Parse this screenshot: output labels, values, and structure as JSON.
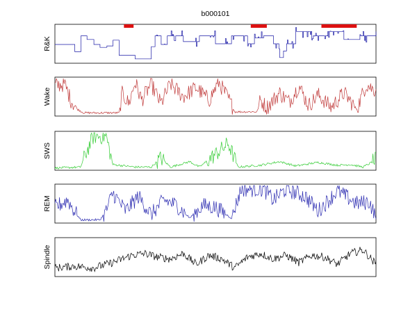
{
  "chart_data": {
    "type": "line",
    "title": "b000101",
    "grid": false,
    "legend": "none",
    "colors": {
      "R&K": "#1a1aa6",
      "Wake": "#c03a3a",
      "SWS": "#33cc33",
      "REM": "#2a2ab0",
      "Spindle": "#000000",
      "marker": "#dd1111",
      "panel_bg": "#ffffff",
      "frame": "#000000"
    },
    "panels": [
      {
        "name": "R&K",
        "ylabel": "R&K",
        "color": "#1a1aa6",
        "style": "step",
        "points": [
          [
            0,
            0.48
          ],
          [
            4,
            0.48
          ],
          [
            6,
            0.28
          ],
          [
            8,
            0.72
          ],
          [
            10,
            0.62
          ],
          [
            12,
            0.48
          ],
          [
            14,
            0.4
          ],
          [
            16,
            0.44
          ],
          [
            18,
            0.6
          ],
          [
            20,
            0.18
          ],
          [
            24,
            0.18
          ],
          [
            25,
            0.08
          ],
          [
            29,
            0.08
          ],
          [
            30,
            0.42
          ],
          [
            31,
            0.72
          ],
          [
            33,
            0.48
          ],
          [
            35,
            0.72
          ],
          [
            40,
            0.56
          ],
          [
            45,
            0.72
          ],
          [
            50,
            0.5
          ],
          [
            55,
            0.72
          ],
          [
            60,
            0.5
          ],
          [
            62,
            0.66
          ],
          [
            65,
            0.72
          ],
          [
            68,
            0.5
          ],
          [
            70,
            0.12
          ],
          [
            71,
            0.3
          ],
          [
            72,
            0.5
          ],
          [
            75,
            0.84
          ],
          [
            80,
            0.72
          ],
          [
            85,
            0.84
          ],
          [
            90,
            0.62
          ],
          [
            95,
            0.72
          ],
          [
            100,
            0.84
          ]
        ],
        "markers": [
          [
            21.5,
            24.5
          ],
          [
            61,
            66
          ],
          [
            83,
            94
          ]
        ]
      },
      {
        "name": "Wake",
        "ylabel": "Wake",
        "color": "#c03a3a",
        "style": "line",
        "points": [
          [
            0,
            0.8
          ],
          [
            3,
            0.85
          ],
          [
            5,
            0.4
          ],
          [
            7,
            0.15
          ],
          [
            9,
            0.05
          ],
          [
            20,
            0.05
          ],
          [
            21,
            0.6
          ],
          [
            23,
            0.3
          ],
          [
            25,
            0.9
          ],
          [
            27,
            0.4
          ],
          [
            30,
            0.85
          ],
          [
            33,
            0.3
          ],
          [
            36,
            0.85
          ],
          [
            40,
            0.5
          ],
          [
            44,
            0.75
          ],
          [
            48,
            0.4
          ],
          [
            51,
            0.9
          ],
          [
            54,
            0.45
          ],
          [
            56,
            0.08
          ],
          [
            63,
            0.08
          ],
          [
            64,
            0.4
          ],
          [
            66,
            0.2
          ],
          [
            70,
            0.6
          ],
          [
            73,
            0.35
          ],
          [
            76,
            0.8
          ],
          [
            79,
            0.25
          ],
          [
            82,
            0.55
          ],
          [
            86,
            0.2
          ],
          [
            90,
            0.6
          ],
          [
            94,
            0.15
          ],
          [
            97,
            0.85
          ],
          [
            99,
            0.7
          ]
        ]
      },
      {
        "name": "SWS",
        "ylabel": "SWS",
        "color": "#33cc33",
        "style": "line",
        "points": [
          [
            0,
            0.02
          ],
          [
            8,
            0.05
          ],
          [
            10,
            0.5
          ],
          [
            12,
            0.9
          ],
          [
            16,
            0.9
          ],
          [
            18,
            0.12
          ],
          [
            25,
            0.05
          ],
          [
            30,
            0.05
          ],
          [
            33,
            0.3
          ],
          [
            36,
            0.05
          ],
          [
            42,
            0.2
          ],
          [
            45,
            0.05
          ],
          [
            50,
            0.4
          ],
          [
            54,
            0.7
          ],
          [
            57,
            0.05
          ],
          [
            64,
            0.1
          ],
          [
            70,
            0.2
          ],
          [
            75,
            0.08
          ],
          [
            82,
            0.18
          ],
          [
            88,
            0.1
          ],
          [
            92,
            0.12
          ],
          [
            96,
            0.05
          ],
          [
            100,
            0.25
          ]
        ]
      },
      {
        "name": "REM",
        "ylabel": "REM",
        "color": "#2a2ab0",
        "style": "line",
        "points": [
          [
            0,
            0.4
          ],
          [
            4,
            0.6
          ],
          [
            6,
            0.3
          ],
          [
            8,
            0.05
          ],
          [
            14,
            0.05
          ],
          [
            16,
            0.3
          ],
          [
            18,
            0.8
          ],
          [
            22,
            0.3
          ],
          [
            26,
            0.7
          ],
          [
            30,
            0.2
          ],
          [
            34,
            0.6
          ],
          [
            38,
            0.45
          ],
          [
            42,
            0.1
          ],
          [
            46,
            0.45
          ],
          [
            50,
            0.4
          ],
          [
            55,
            0.1
          ],
          [
            58,
            0.9
          ],
          [
            65,
            0.9
          ],
          [
            68,
            0.6
          ],
          [
            72,
            0.9
          ],
          [
            78,
            0.7
          ],
          [
            82,
            0.3
          ],
          [
            88,
            0.85
          ],
          [
            94,
            0.5
          ],
          [
            98,
            0.55
          ],
          [
            100,
            0.1
          ]
        ]
      },
      {
        "name": "Spindle",
        "ylabel": "Spindle",
        "color": "#000000",
        "style": "line",
        "points": [
          [
            0,
            0.2
          ],
          [
            6,
            0.25
          ],
          [
            12,
            0.2
          ],
          [
            18,
            0.35
          ],
          [
            24,
            0.55
          ],
          [
            28,
            0.6
          ],
          [
            32,
            0.5
          ],
          [
            36,
            0.45
          ],
          [
            40,
            0.6
          ],
          [
            44,
            0.3
          ],
          [
            48,
            0.55
          ],
          [
            52,
            0.45
          ],
          [
            56,
            0.2
          ],
          [
            60,
            0.5
          ],
          [
            64,
            0.6
          ],
          [
            68,
            0.45
          ],
          [
            72,
            0.55
          ],
          [
            76,
            0.35
          ],
          [
            80,
            0.55
          ],
          [
            84,
            0.5
          ],
          [
            88,
            0.3
          ],
          [
            92,
            0.6
          ],
          [
            96,
            0.7
          ],
          [
            100,
            0.3
          ]
        ]
      }
    ]
  }
}
